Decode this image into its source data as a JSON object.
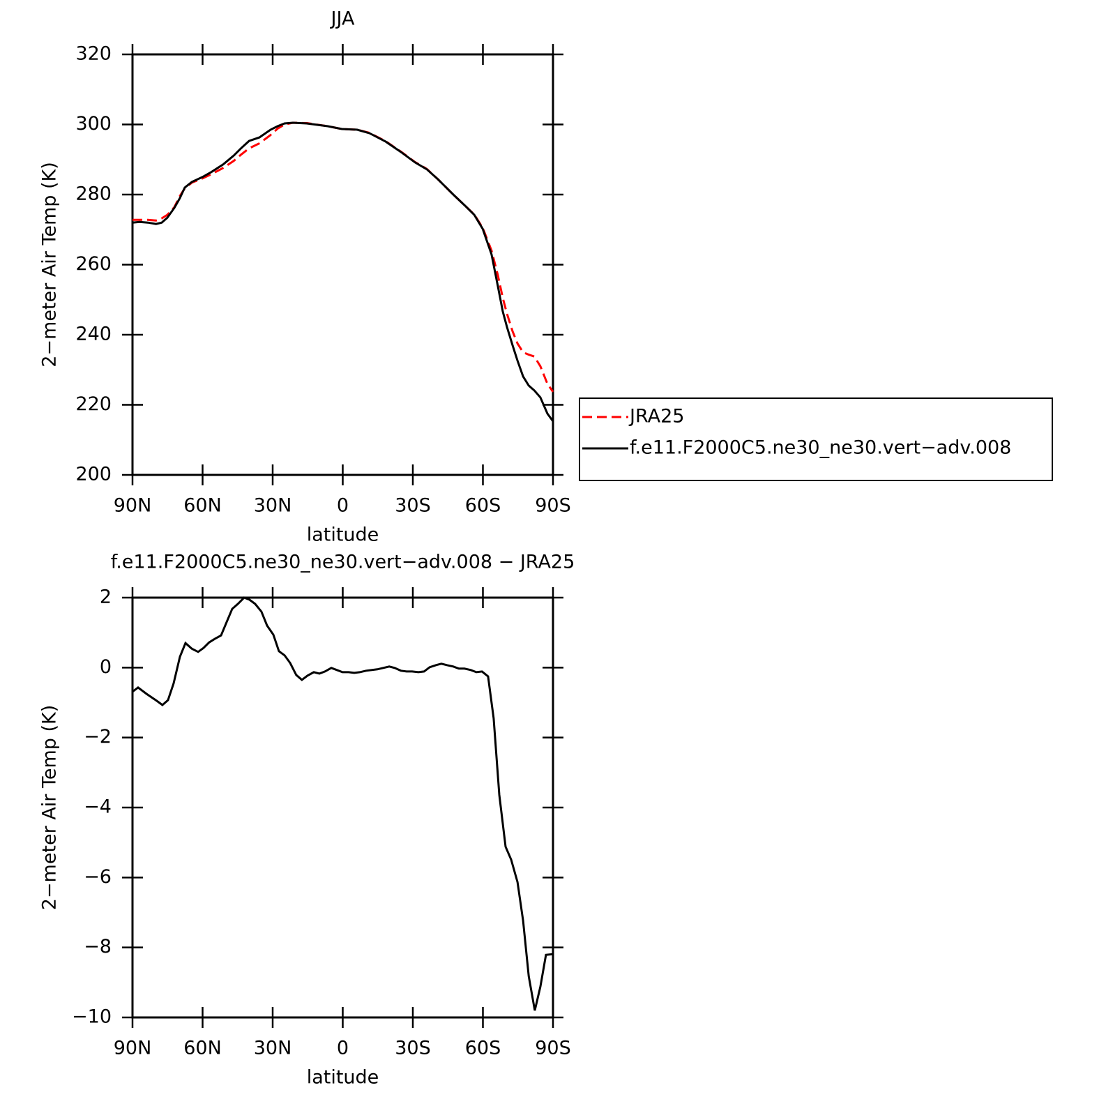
{
  "chart_data": [
    {
      "type": "line",
      "title": "JJA",
      "xlabel": "latitude",
      "ylabel": "2−meter Air Temp (K)",
      "x": [
        90,
        87,
        83.4,
        79.9,
        77.5,
        75.1,
        72.1,
        69.7,
        67.6,
        64.6,
        60.1,
        56.3,
        51.2,
        46.7,
        43.7,
        40.1,
        35.7,
        30.9,
        27.9,
        24.9,
        21.3,
        15.4,
        6.4,
        0.4,
        -6.2,
        -11.5,
        -18.4,
        -25,
        -30.9,
        -36,
        -40.7,
        -47.3,
        -52.4,
        -56.3,
        -59.9,
        -63.7,
        -66.4,
        -68.5,
        -70.3,
        -72.7,
        -74.8,
        -77.2,
        -79.6,
        -82,
        -84.6,
        -87.6,
        -90
      ],
      "series": [
        {
          "name": "JRA25",
          "color": "#ff0000",
          "style": "dashed",
          "values": [
            272.8,
            272.8,
            272.8,
            272.6,
            273.2,
            274.2,
            276.4,
            279.6,
            281.8,
            283.4,
            284.6,
            285.8,
            287.6,
            289.6,
            291.3,
            293.2,
            294.6,
            297.0,
            298.8,
            300.0,
            300.5,
            300.4,
            299.5,
            298.7,
            298.5,
            297.6,
            295.2,
            292.2,
            289.3,
            287.3,
            284.4,
            280.0,
            276.8,
            274.3,
            270.5,
            264.0,
            257.0,
            250.5,
            246.0,
            241.0,
            237.5,
            235.0,
            234.3,
            233.8,
            231.0,
            226.0,
            223.7
          ]
        },
        {
          "name": "f.e11.F2000C5.ne30_ne30.vert−adv.008",
          "color": "#000000",
          "style": "solid",
          "values": [
            272.0,
            272.2,
            272.0,
            271.6,
            272.0,
            273.4,
            276.2,
            279.0,
            282.0,
            283.6,
            285.0,
            286.4,
            288.6,
            291.1,
            293.1,
            295.3,
            296.3,
            298.5,
            299.5,
            300.3,
            300.5,
            300.3,
            299.5,
            298.7,
            298.5,
            297.5,
            295.1,
            292.1,
            289.2,
            287.2,
            284.4,
            280.0,
            276.8,
            274.2,
            270.2,
            262.9,
            253.9,
            246.6,
            242.2,
            237.0,
            232.6,
            228.1,
            225.5,
            224.1,
            222.1,
            217.5,
            215.3
          ]
        }
      ],
      "xlim": [
        90,
        -90
      ],
      "xticks": [
        {
          "value": 90,
          "label": "90N"
        },
        {
          "value": 60,
          "label": "60N"
        },
        {
          "value": 30,
          "label": "30N"
        },
        0,
        {
          "value": -30,
          "label": "30S"
        },
        {
          "value": -60,
          "label": "60S"
        },
        {
          "value": -90,
          "label": "90S"
        }
      ],
      "ylim": [
        200,
        320
      ],
      "yticks": [
        200,
        220,
        240,
        260,
        280,
        300,
        320
      ],
      "legend": "right"
    },
    {
      "type": "line",
      "title": "f.e11.F2000C5.ne30_ne30.vert−adv.008 − JRA25",
      "xlabel": "latitude",
      "ylabel": "2−meter Air Temp (K)",
      "x": [
        90,
        87.6,
        84,
        79.6,
        77.2,
        74.8,
        72.4,
        69.7,
        67.3,
        64.6,
        61.9,
        59.6,
        57.2,
        54.8,
        52.1,
        49.7,
        47.3,
        44.9,
        42.2,
        39.9,
        37.5,
        34.8,
        32.4,
        29.7,
        27.3,
        24.9,
        22.5,
        19.9,
        17.5,
        15.1,
        12.4,
        10,
        7.6,
        4.9,
        2.5,
        0.1,
        -2.5,
        -4.9,
        -7.3,
        -10,
        -14.8,
        -19.9,
        -22.2,
        -24.9,
        -27.3,
        -29.7,
        -32.4,
        -34.8,
        -37.2,
        -39.9,
        -42.2,
        -44.6,
        -47.3,
        -49.7,
        -52.1,
        -54.8,
        -57.2,
        -59.6,
        -62.2,
        -64.6,
        -67,
        -69.7,
        -72.1,
        -74.8,
        -77.2,
        -79.6,
        -82.2,
        -84.6,
        -87,
        -90
      ],
      "series": [
        {
          "color": "#000000",
          "style": "solid",
          "values": [
            -0.69,
            -0.57,
            -0.75,
            -0.95,
            -1.07,
            -0.93,
            -0.45,
            0.31,
            0.7,
            0.54,
            0.45,
            0.56,
            0.72,
            0.82,
            0.92,
            1.3,
            1.68,
            1.82,
            2.0,
            1.94,
            1.82,
            1.6,
            1.2,
            0.94,
            0.47,
            0.35,
            0.13,
            -0.21,
            -0.35,
            -0.23,
            -0.13,
            -0.17,
            -0.11,
            -0.01,
            -0.07,
            -0.13,
            -0.13,
            -0.15,
            -0.13,
            -0.09,
            -0.05,
            0.03,
            -0.01,
            -0.09,
            -0.11,
            -0.11,
            -0.13,
            -0.11,
            0.01,
            0.07,
            0.11,
            0.07,
            0.03,
            -0.03,
            -0.03,
            -0.07,
            -0.13,
            -0.11,
            -0.25,
            -1.45,
            -3.64,
            -5.12,
            -5.49,
            -6.13,
            -7.23,
            -8.82,
            -9.8,
            -9.12,
            -8.21,
            -8.19
          ]
        }
      ],
      "xlim": [
        90,
        -90
      ],
      "xticks": [
        {
          "value": 90,
          "label": "90N"
        },
        {
          "value": 60,
          "label": "60N"
        },
        {
          "value": 30,
          "label": "30N"
        },
        0,
        {
          "value": -30,
          "label": "30S"
        },
        {
          "value": -60,
          "label": "60S"
        },
        {
          "value": -90,
          "label": "90S"
        }
      ],
      "ylim": [
        -10,
        2
      ],
      "yticks": [
        {
          "value": -10,
          "label": "−10"
        },
        {
          "value": -8,
          "label": "−8"
        },
        {
          "value": -6,
          "label": "−6"
        },
        {
          "value": -4,
          "label": "−4"
        },
        {
          "value": -2,
          "label": "−2"
        },
        0,
        2
      ]
    }
  ]
}
